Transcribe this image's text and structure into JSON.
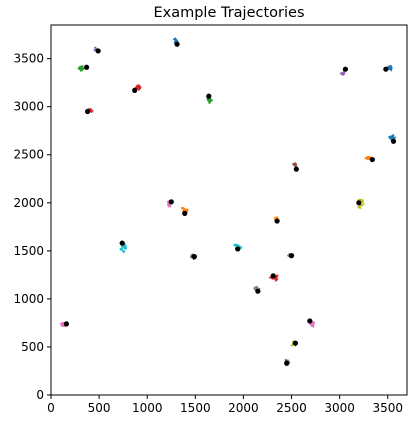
{
  "chart_data": {
    "type": "line",
    "title": "Example Trajectories",
    "xlim": [
      0,
      3700
    ],
    "ylim": [
      0,
      3850
    ],
    "x_ticks": [
      0,
      500,
      1000,
      1500,
      2000,
      2500,
      3000,
      3500
    ],
    "y_ticks": [
      0,
      500,
      1000,
      1500,
      2000,
      2500,
      3000,
      3500
    ],
    "grid": false,
    "legend": "none",
    "start_marker_color": "#000000",
    "series": [
      {
        "color": "#1f77b4",
        "start": [
          1310,
          3650
        ],
        "center": [
          1300,
          3680
        ],
        "r": 40
      },
      {
        "color": "#9467bd",
        "start": [
          490,
          3580
        ],
        "center": [
          460,
          3590
        ],
        "r": 35
      },
      {
        "color": "#2ca02c",
        "start": [
          370,
          3410
        ],
        "center": [
          310,
          3410
        ],
        "r": 40
      },
      {
        "color": "#d62728",
        "start": [
          870,
          3170
        ],
        "center": [
          890,
          3200
        ],
        "r": 45
      },
      {
        "color": "#2ca02c",
        "start": [
          1640,
          3110
        ],
        "center": [
          1660,
          3070
        ],
        "r": 40
      },
      {
        "color": "#d62728",
        "start": [
          380,
          2950
        ],
        "center": [
          410,
          2960
        ],
        "r": 40
      },
      {
        "color": "#9467bd",
        "start": [
          3060,
          3390
        ],
        "center": [
          3030,
          3350
        ],
        "r": 35
      },
      {
        "color": "#1f77b4",
        "start": [
          3480,
          3390
        ],
        "center": [
          3510,
          3410
        ],
        "r": 40
      },
      {
        "color": "#1f77b4",
        "start": [
          3560,
          2640
        ],
        "center": [
          3540,
          2690
        ],
        "r": 50
      },
      {
        "color": "#ff7f0e",
        "start": [
          3340,
          2450
        ],
        "center": [
          3300,
          2470
        ],
        "r": 40
      },
      {
        "color": "#8c564b",
        "start": [
          2550,
          2350
        ],
        "center": [
          2540,
          2390
        ],
        "r": 35
      },
      {
        "color": "#bcbd22",
        "start": [
          3200,
          2000
        ],
        "center": [
          3220,
          1990
        ],
        "r": 55
      },
      {
        "color": "#e377c2",
        "start": [
          1250,
          2010
        ],
        "center": [
          1220,
          1990
        ],
        "r": 40
      },
      {
        "color": "#ff7f0e",
        "start": [
          1390,
          1890
        ],
        "center": [
          1380,
          1920
        ],
        "r": 40
      },
      {
        "color": "#ff7f0e",
        "start": [
          2350,
          1810
        ],
        "center": [
          2340,
          1830
        ],
        "r": 35
      },
      {
        "color": "#17becf",
        "start": [
          740,
          1580
        ],
        "center": [
          750,
          1530
        ],
        "r": 50
      },
      {
        "color": "#17becf",
        "start": [
          1940,
          1520
        ],
        "center": [
          1950,
          1530
        ],
        "r": 45
      },
      {
        "color": "#8c564b",
        "start": [
          1490,
          1440
        ],
        "center": [
          1480,
          1440
        ],
        "r": 35
      },
      {
        "color": "#7f7f7f",
        "start": [
          2500,
          1450
        ],
        "center": [
          2480,
          1450
        ],
        "r": 35
      },
      {
        "color": "#d62728",
        "start": [
          2310,
          1240
        ],
        "center": [
          2320,
          1220
        ],
        "r": 55
      },
      {
        "color": "#7f7f7f",
        "start": [
          2150,
          1080
        ],
        "center": [
          2140,
          1100
        ],
        "r": 40
      },
      {
        "color": "#e377c2",
        "start": [
          160,
          740
        ],
        "center": [
          140,
          740
        ],
        "r": 40
      },
      {
        "color": "#e377c2",
        "start": [
          2690,
          770
        ],
        "center": [
          2720,
          740
        ],
        "r": 40
      },
      {
        "color": "#bcbd22",
        "start": [
          2540,
          540
        ],
        "center": [
          2520,
          540
        ],
        "r": 40
      },
      {
        "color": "#8c564b",
        "start": [
          2450,
          330
        ],
        "center": [
          2460,
          350
        ],
        "r": 40
      }
    ]
  }
}
